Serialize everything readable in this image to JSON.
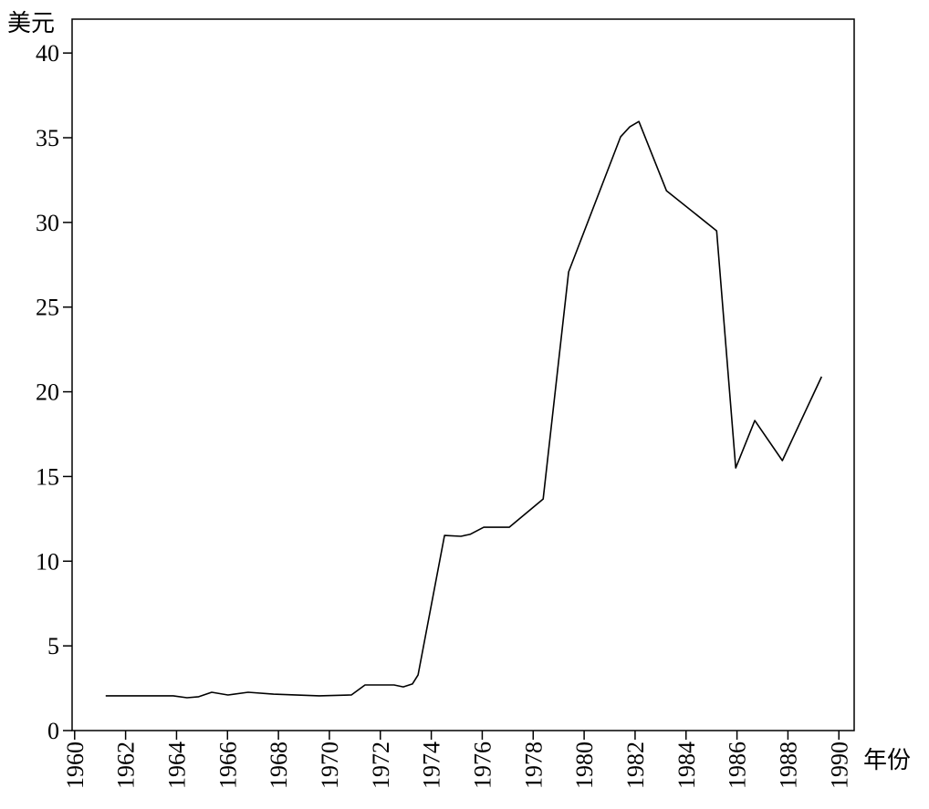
{
  "chart_data": {
    "type": "line",
    "ylabel": "美元",
    "xlabel": "年份",
    "x": [
      1961.22,
      1963.87,
      1964.41,
      1964.87,
      1965.38,
      1966.02,
      1966.81,
      1967.81,
      1969.6,
      1970.86,
      1971.4,
      1972.54,
      1972.9,
      1973.26,
      1973.48,
      1974.52,
      1975.16,
      1975.52,
      1976.06,
      1977.06,
      1978.39,
      1979.39,
      1981.43,
      1981.79,
      1982.15,
      1983.23,
      1985.2,
      1985.95,
      1986.7,
      1987.78,
      1989.32
    ],
    "series": [
      {
        "color": "#000000",
        "values": [
          2.05,
          2.05,
          1.94,
          2.0,
          2.26,
          2.1,
          2.26,
          2.15,
          2.05,
          2.1,
          2.69,
          2.69,
          2.58,
          2.75,
          3.28,
          11.52,
          11.47,
          11.58,
          12.0,
          12.0,
          13.67,
          27.08,
          35.05,
          35.64,
          35.96,
          31.87,
          29.5,
          15.5,
          18.3,
          15.94,
          20.89
        ]
      }
    ],
    "xlim": [
      1959.9,
      1990.6
    ],
    "xticks": [
      1960,
      1962,
      1964,
      1966,
      1968,
      1970,
      1972,
      1974,
      1976,
      1978,
      1980,
      1982,
      1984,
      1986,
      1988,
      1990
    ],
    "ylim": [
      0,
      42
    ],
    "yticks": [
      0,
      5,
      10,
      15,
      20,
      25,
      30,
      35,
      40
    ]
  }
}
